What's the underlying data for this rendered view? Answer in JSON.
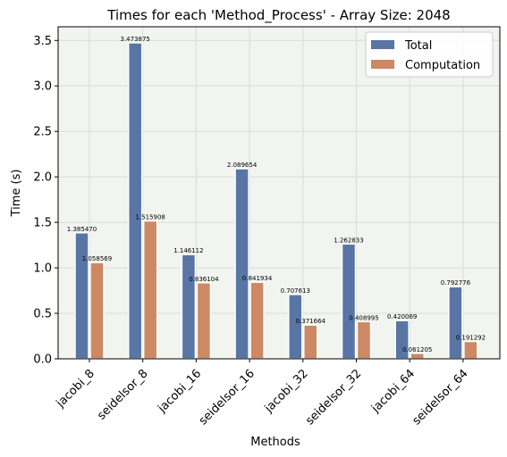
{
  "chart_data": {
    "type": "bar",
    "title": "Times for each 'Method_Process' - Array Size: 2048",
    "xlabel": "Methods",
    "ylabel": "Time (s)",
    "categories": [
      "jacobi_8",
      "seidelsor_8",
      "jacobi_16",
      "seidelsor_16",
      "jacobi_32",
      "seidelsor_32",
      "jacobi_64",
      "seidelsor_64"
    ],
    "series": [
      {
        "name": "Total",
        "color": "#5875a4",
        "values": [
          1.38547,
          3.473875,
          1.146112,
          2.089654,
          0.707613,
          1.262833,
          0.420069,
          0.792776
        ],
        "labels": [
          "1.385470",
          "3.473875",
          "1.146112",
          "2.089654",
          "0.707613",
          "1.262833",
          "0.420069",
          "0.792776"
        ]
      },
      {
        "name": "Computation",
        "color": "#cc8963",
        "values": [
          1.058569,
          1.515908,
          0.836104,
          0.841934,
          0.371664,
          0.408995,
          0.061205,
          0.191292
        ],
        "labels": [
          "1.058569",
          "1.515908",
          "0.836104",
          "0.841934",
          "0.371664",
          "0.408995",
          "0.061205",
          "0.191292"
        ]
      }
    ],
    "ylim": [
      0,
      3.65
    ],
    "yticks": [
      "0.0",
      "0.5",
      "1.0",
      "1.5",
      "2.0",
      "2.5",
      "3.0",
      "3.5"
    ],
    "grid": true,
    "legend_position": "top-right",
    "plot_background": "#f2f4ef"
  }
}
